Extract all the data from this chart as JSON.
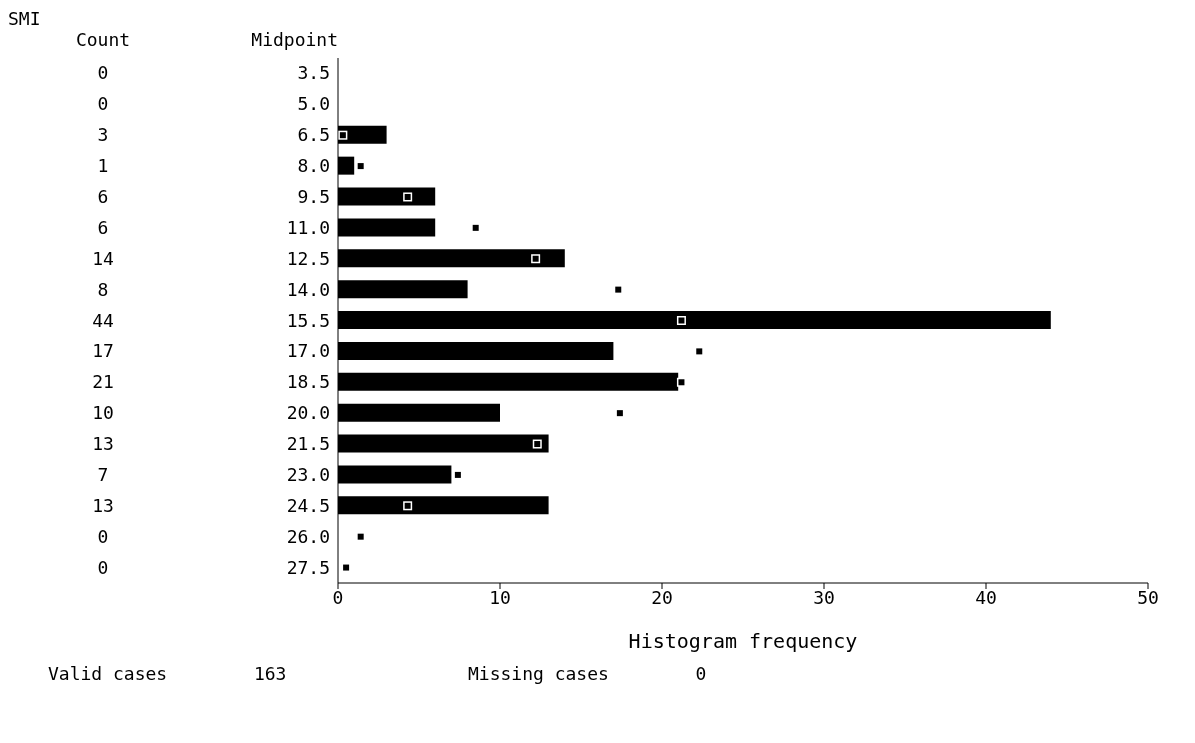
{
  "chart_data": {
    "type": "bar",
    "orientation": "horizontal",
    "title": "SMI",
    "xlabel": "Histogram frequency",
    "categories": [
      "3.5",
      "5.0",
      "6.5",
      "8.0",
      "9.5",
      "11.0",
      "12.5",
      "14.0",
      "15.5",
      "17.0",
      "18.5",
      "20.0",
      "21.5",
      "23.0",
      "24.5",
      "26.0",
      "27.5"
    ],
    "series": [
      {
        "type": "bar",
        "color": "#000000",
        "values": [
          0,
          0,
          3,
          1,
          6,
          6,
          14,
          8,
          44,
          17,
          21,
          10,
          13,
          7,
          13,
          0,
          0
        ],
        "value_labels": [
          "0",
          "0",
          "3",
          "1",
          "6",
          "6",
          "14",
          "8",
          "44",
          "17",
          "21",
          "10",
          "13",
          "7",
          "13",
          "0",
          "0"
        ]
      },
      {
        "type": "scatter",
        "color": "#000000",
        "marker": "square",
        "values": [
          null,
          null,
          0.3,
          1.4,
          4.3,
          8.5,
          12.2,
          17.3,
          21.2,
          22.3,
          21.2,
          17.4,
          12.3,
          7.4,
          4.3,
          1.4,
          0.5
        ]
      }
    ],
    "xlim": [
      0,
      50
    ],
    "xticks": [
      0,
      10,
      20,
      30,
      40,
      50
    ],
    "grid": false,
    "legend": false,
    "annotations": [
      "Count",
      "Midpoint",
      "Valid cases        163",
      "Missing cases        0"
    ]
  }
}
